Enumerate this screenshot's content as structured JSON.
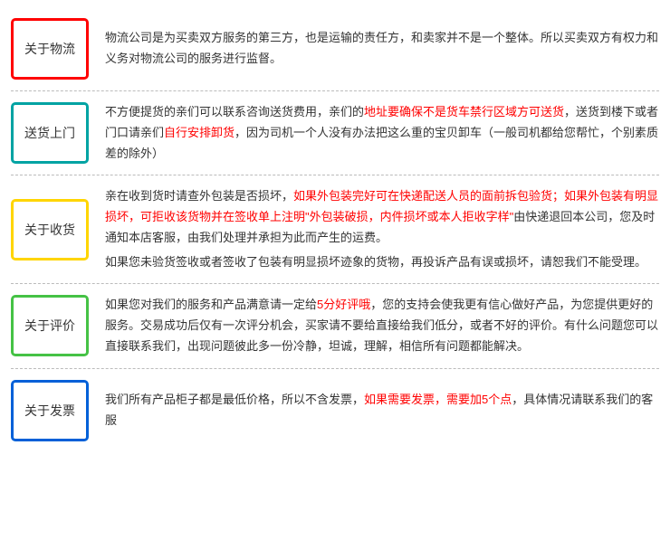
{
  "sections": [
    {
      "id": "logistics",
      "label": "关于物流",
      "border_color": "#ff0000",
      "paragraphs": [
        {
          "runs": [
            {
              "t": "物流公司是为买卖双方服务的第三方，也是运输的责任方，和卖家并不是一个整体。所以买卖双方有权力和义务对物流公司的服务进行监督。",
              "hl": false
            }
          ]
        }
      ]
    },
    {
      "id": "delivery",
      "label": "送货上门",
      "border_color": "#00a3a3",
      "paragraphs": [
        {
          "runs": [
            {
              "t": "不方便提货的亲们可以联系咨询送货费用，亲们的",
              "hl": false
            },
            {
              "t": "地址要确保不是货车禁行区域方可送货",
              "hl": true
            },
            {
              "t": "，送货到楼下或者门口请亲们",
              "hl": false
            },
            {
              "t": "自行安排卸货",
              "hl": true
            },
            {
              "t": "，因为司机一个人没有办法把这么重的宝贝卸车（一般司机都给您帮忙，个别素质差的除外）",
              "hl": false
            }
          ]
        }
      ]
    },
    {
      "id": "receiving",
      "label": "关于收货",
      "border_color": "#ffd500",
      "paragraphs": [
        {
          "runs": [
            {
              "t": "亲在收到货时请查外包装是否损坏，",
              "hl": false
            },
            {
              "t": "如果外包装完好可在快递配送人员的面前拆包验货；如果外包装有明显损坏，可拒收该货物并在签收单上注明\"外包装破损，内件损坏或本人拒收字样\"",
              "hl": true
            },
            {
              "t": "由快递退回本公司，您及时通知本店客服，由我们处理并承担为此而产生的运费。",
              "hl": false
            }
          ]
        },
        {
          "runs": [
            {
              "t": "如果您未验货签收或者签收了包装有明显损坏迹象的货物，再投诉产品有误或损坏，请恕我们不能受理。",
              "hl": false
            }
          ]
        }
      ]
    },
    {
      "id": "review",
      "label": "关于评价",
      "border_color": "#45c245",
      "paragraphs": [
        {
          "runs": [
            {
              "t": "如果您对我们的服务和产品满意请一定给",
              "hl": false
            },
            {
              "t": "5分好评哦",
              "hl": true
            },
            {
              "t": "，您的支持会使我更有信心做好产品，为您提供更好的服务。交易成功后仅有一次评分机会，买家请不要给直接给我们低分，或者不好的评价。有什么问题您可以直接联系我们，出现问题彼此多一份冷静，坦诚，理解，相信所有问题都能解决。",
              "hl": false
            }
          ]
        }
      ]
    },
    {
      "id": "invoice",
      "label": "关于发票",
      "border_color": "#0060d8",
      "paragraphs": [
        {
          "runs": [
            {
              "t": "我们所有产品柜子都是最低价格，所以不含发票，",
              "hl": false
            },
            {
              "t": "如果需要发票，需要加5个点",
              "hl": true
            },
            {
              "t": "，具体情况请联系我们的客服",
              "hl": false
            }
          ]
        }
      ]
    }
  ]
}
